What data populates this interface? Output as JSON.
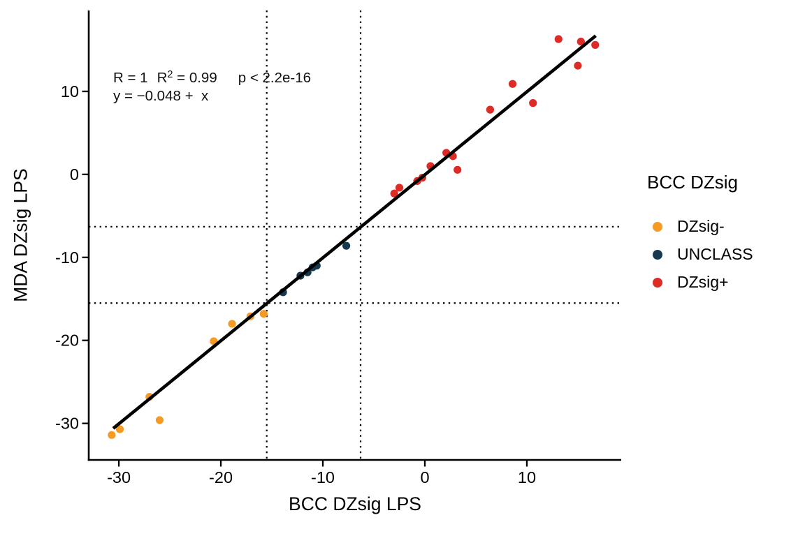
{
  "figure": {
    "background": "#ffffff"
  },
  "chart_data": {
    "type": "scatter",
    "title": "",
    "xlabel": "BCC DZsig LPS",
    "ylabel": "MDA DZsig LPS",
    "xlim": [
      -32.95,
      19.25
    ],
    "ylim": [
      -34.4,
      19.75
    ],
    "x_ticks": [
      -30,
      -20,
      -10,
      0,
      10
    ],
    "y_ticks": [
      10,
      0,
      -10,
      -20,
      -30
    ],
    "grid": false,
    "axis_color": "#000000",
    "reference_lines": {
      "style": "dotted",
      "color": "#000000",
      "vertical_x": [
        -15.5,
        -6.3
      ],
      "horizontal_y": [
        -6.3,
        -15.5
      ]
    },
    "regression_line": {
      "slope": 1,
      "intercept": -0.048,
      "x_start": -30.55,
      "x_end": 16.75,
      "color": "#000000"
    },
    "series": [
      {
        "name": "DZsig-",
        "color": "#F59B25",
        "points": [
          [
            -30.7,
            -31.4
          ],
          [
            -29.9,
            -30.7
          ],
          [
            -27.0,
            -26.8
          ],
          [
            -26.0,
            -29.6
          ],
          [
            -20.7,
            -20.1
          ],
          [
            -18.9,
            -18.0
          ],
          [
            -17.1,
            -17.1
          ],
          [
            -15.8,
            -16.8
          ]
        ]
      },
      {
        "name": "UNCLASS",
        "color": "#17394E",
        "points": [
          [
            -13.9,
            -14.2
          ],
          [
            -12.2,
            -12.2
          ],
          [
            -11.5,
            -11.8
          ],
          [
            -11.0,
            -11.2
          ],
          [
            -10.6,
            -11.0
          ],
          [
            -7.7,
            -8.6
          ]
        ]
      },
      {
        "name": "DZsig+",
        "color": "#DD2B25",
        "points": [
          [
            -3.0,
            -2.3
          ],
          [
            -2.5,
            -1.6
          ],
          [
            -0.75,
            -0.8
          ],
          [
            -0.25,
            -0.4
          ],
          [
            0.55,
            1.0
          ],
          [
            2.1,
            2.6
          ],
          [
            2.75,
            2.2
          ],
          [
            3.2,
            0.55
          ],
          [
            6.4,
            7.8
          ],
          [
            8.6,
            10.9
          ],
          [
            10.6,
            8.6
          ],
          [
            13.1,
            16.3
          ],
          [
            15.0,
            13.1
          ],
          [
            15.3,
            16.0
          ],
          [
            16.7,
            15.6
          ]
        ]
      }
    ],
    "annotations": {
      "r": "R = 1",
      "r2_base": "R",
      "r2_sup": "2",
      "r2_rest": " = 0.99",
      "p": "p < 2.2e-16",
      "equation": "y = −0.048 +  x"
    },
    "legend": {
      "title": "BCC DZsig",
      "position": "right",
      "items": [
        {
          "label": "DZsig-",
          "color": "#F59B25"
        },
        {
          "label": "UNCLASS",
          "color": "#17394E"
        },
        {
          "label": "DZsig+",
          "color": "#DD2B25"
        }
      ]
    }
  }
}
